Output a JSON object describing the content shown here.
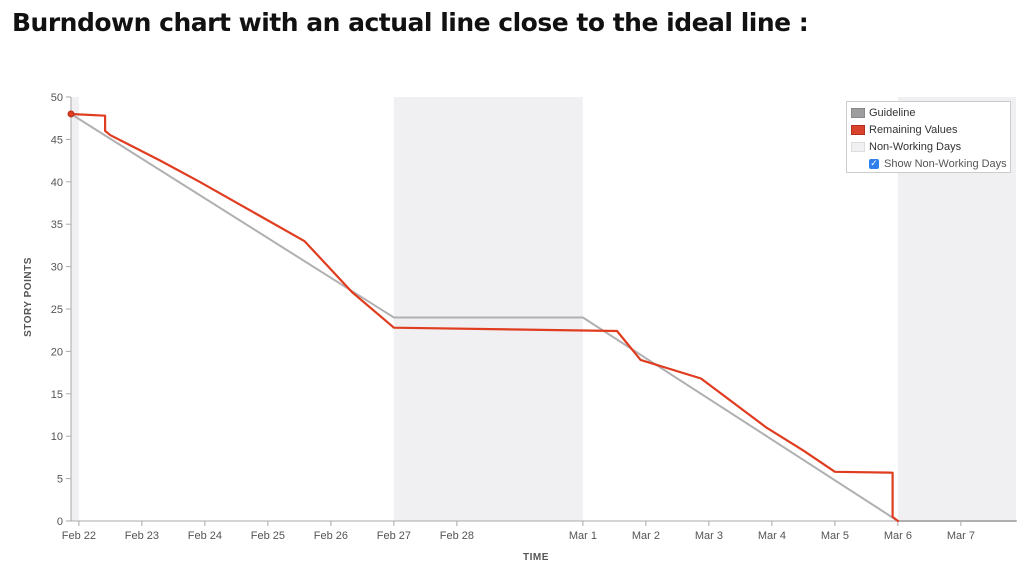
{
  "page": {
    "title": "Burndown chart with an actual line close to the ideal line :"
  },
  "colors": {
    "guideline": "#b0b0b3",
    "remaining": "#e03c1f",
    "non_working": "#f0f0f2",
    "checkbox": "#2f80ed"
  },
  "legend": {
    "items": [
      {
        "label": "Guideline",
        "swatch_color": "#9d9d9f"
      },
      {
        "label": "Remaining Values",
        "swatch_color": "#d9432e"
      },
      {
        "label": "Non-Working Days",
        "swatch_color": "#f0f0f2"
      }
    ],
    "checkbox_label": "Show Non-Working Days",
    "checkbox_checked": true,
    "placement": "top-right"
  },
  "chart_data": {
    "type": "line",
    "title": "",
    "xlabel": "TIME",
    "ylabel": "STORY POINTS",
    "ylim": [
      0,
      50
    ],
    "xlim": [
      "2024-02-21 21:00",
      "2024-03-07 21:00"
    ],
    "y_ticks": [
      0,
      5,
      10,
      15,
      20,
      25,
      30,
      35,
      40,
      45,
      50
    ],
    "x_ticks": [
      {
        "label": "Feb 22",
        "date": "2024-02-22"
      },
      {
        "label": "Feb 23",
        "date": "2024-02-23"
      },
      {
        "label": "Feb 24",
        "date": "2024-02-24"
      },
      {
        "label": "Feb 25",
        "date": "2024-02-25"
      },
      {
        "label": "Feb 26",
        "date": "2024-02-26"
      },
      {
        "label": "Feb 27",
        "date": "2024-02-27"
      },
      {
        "label": "Feb 28",
        "date": "2024-02-28"
      },
      {
        "label": "Mar 1",
        "date": "2024-03-01"
      },
      {
        "label": "Mar 2",
        "date": "2024-03-02"
      },
      {
        "label": "Mar 3",
        "date": "2024-03-03"
      },
      {
        "label": "Mar 4",
        "date": "2024-03-04"
      },
      {
        "label": "Mar 5",
        "date": "2024-03-05"
      },
      {
        "label": "Mar 6",
        "date": "2024-03-06"
      },
      {
        "label": "Mar 7",
        "date": "2024-03-07"
      }
    ],
    "grid": false,
    "non_working_periods": [
      {
        "start": "2024-02-21 21:00",
        "end": "2024-02-22 00:00"
      },
      {
        "start": "2024-02-27 00:00",
        "end": "2024-03-01 00:00"
      },
      {
        "start": "2024-03-06 00:00",
        "end": "2024-03-07 21:00"
      }
    ],
    "series": [
      {
        "name": "Guideline",
        "color": "#b0b0b3",
        "points": [
          {
            "x": "2024-02-21 21:00",
            "y": 48
          },
          {
            "x": "2024-02-27 00:00",
            "y": 24
          },
          {
            "x": "2024-03-01 00:00",
            "y": 24
          },
          {
            "x": "2024-03-06 00:00",
            "y": 0
          },
          {
            "x": "2024-03-07 21:00",
            "y": 0
          }
        ]
      },
      {
        "name": "Remaining Values",
        "color": "#e03c1f",
        "points": [
          {
            "x": "2024-02-21 21:00",
            "y": 48
          },
          {
            "x": "2024-02-22 10:00",
            "y": 47.8
          },
          {
            "x": "2024-02-22 10:00",
            "y": 46
          },
          {
            "x": "2024-02-22 12:00",
            "y": 45.5
          },
          {
            "x": "2024-02-23 07:00",
            "y": 42.5
          },
          {
            "x": "2024-02-23 22:00",
            "y": 40
          },
          {
            "x": "2024-02-25 14:00",
            "y": 33
          },
          {
            "x": "2024-02-26 08:00",
            "y": 27
          },
          {
            "x": "2024-02-27 00:00",
            "y": 22.8
          },
          {
            "x": "2024-03-01 13:00",
            "y": 22.4
          },
          {
            "x": "2024-03-01 22:00",
            "y": 19
          },
          {
            "x": "2024-03-02 21:00",
            "y": 16.8
          },
          {
            "x": "2024-03-03 22:00",
            "y": 11
          },
          {
            "x": "2024-03-04 12:00",
            "y": 8.3
          },
          {
            "x": "2024-03-05 00:00",
            "y": 5.8
          },
          {
            "x": "2024-03-05 22:00",
            "y": 5.7
          },
          {
            "x": "2024-03-05 22:00",
            "y": 0.5
          },
          {
            "x": "2024-03-06 00:00",
            "y": 0
          }
        ],
        "markers": [
          {
            "x": "2024-02-21 21:00",
            "y": 48
          }
        ]
      }
    ]
  }
}
